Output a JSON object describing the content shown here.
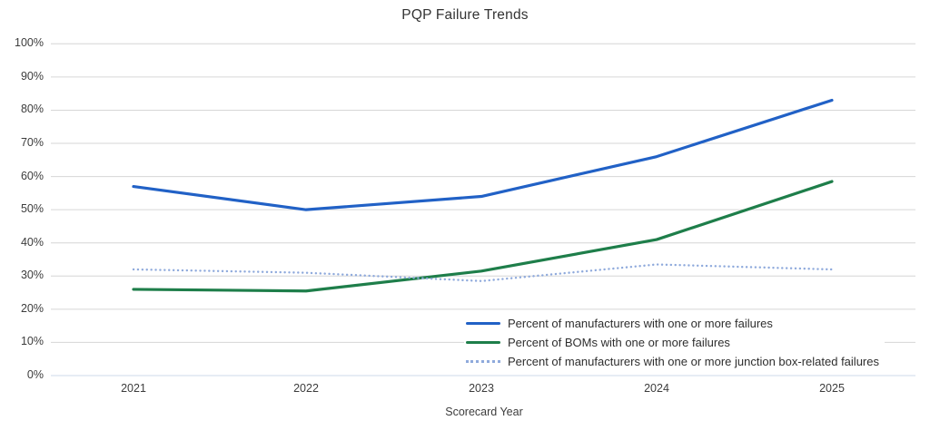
{
  "chart_data": {
    "type": "line",
    "title": "PQP Failure Trends",
    "xlabel": "Scorecard Year",
    "ylabel": "",
    "categories": [
      "2021",
      "2022",
      "2023",
      "2024",
      "2025"
    ],
    "y_axis": {
      "min": 0,
      "max": 100,
      "step": 10,
      "format": "percent"
    },
    "y_tick_labels": [
      "0%",
      "10%",
      "20%",
      "30%",
      "40%",
      "50%",
      "60%",
      "70%",
      "80%",
      "90%",
      "100%"
    ],
    "grid": true,
    "legend_position": "inside-bottom-right",
    "series": [
      {
        "name": "Percent of manufacturers with one or more failures",
        "color": "#2161c6",
        "line_style": "solid",
        "values": [
          57,
          50,
          54,
          66,
          83
        ]
      },
      {
        "name": "Percent of BOMs with one or more failures",
        "color": "#1e7e4a",
        "line_style": "solid",
        "values": [
          26,
          25.5,
          31.5,
          41,
          58.5
        ]
      },
      {
        "name": "Percent of manufacturers with one or more junction box-related failures",
        "color": "#8faadc",
        "line_style": "dotted",
        "values": [
          32,
          31,
          28.5,
          33.5,
          32
        ]
      }
    ],
    "colors": {
      "gridline": "#d6d6d6",
      "baseline": "#ccd8ea",
      "text": "#3c3c3c"
    }
  }
}
